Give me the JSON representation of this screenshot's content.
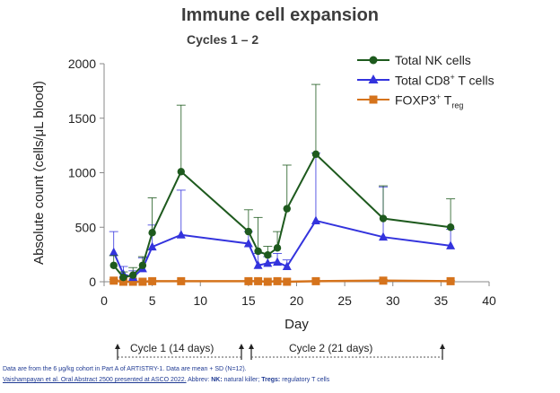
{
  "chart_data": {
    "type": "line",
    "title": "Immune cell expansion",
    "subtitle": "Cycles 1 – 2",
    "xlabel": "Day",
    "ylabel": "Absolute count (cells/μL blood)",
    "xlim": [
      0,
      40
    ],
    "ylim": [
      0,
      2000
    ],
    "xticks": [
      0,
      5,
      10,
      15,
      20,
      25,
      30,
      35,
      40
    ],
    "yticks": [
      0,
      500,
      1000,
      1500,
      2000
    ],
    "grid": false,
    "legend_position": "top-right",
    "series": [
      {
        "name": "Total NK cells",
        "color": "#1e5a1e",
        "marker": "circle",
        "x": [
          1,
          2,
          3,
          4,
          5,
          8,
          15,
          16,
          17,
          18,
          19,
          22,
          29,
          36
        ],
        "y": [
          150,
          40,
          60,
          150,
          450,
          1010,
          460,
          280,
          245,
          310,
          670,
          1170,
          580,
          500
        ],
        "err": [
          90,
          50,
          70,
          80,
          320,
          610,
          200,
          310,
          80,
          150,
          400,
          640,
          300,
          260
        ]
      },
      {
        "name": "Total CD8⁺ T cells",
        "color": "#3333dd",
        "marker": "triangle",
        "x": [
          1,
          2,
          3,
          4,
          5,
          8,
          15,
          16,
          17,
          18,
          19,
          22,
          29,
          36
        ],
        "y": [
          270,
          70,
          40,
          120,
          320,
          430,
          350,
          150,
          170,
          180,
          140,
          560,
          410,
          330
        ],
        "err": [
          190,
          70,
          60,
          100,
          200,
          410,
          110,
          110,
          60,
          80,
          60,
          620,
          460,
          150
        ]
      },
      {
        "name": "FOXP3⁺ T_reg",
        "color": "#d5731c",
        "marker": "square",
        "x": [
          1,
          2,
          3,
          4,
          5,
          8,
          15,
          16,
          17,
          18,
          19,
          22,
          29,
          36
        ],
        "y": [
          10,
          0,
          0,
          0,
          5,
          5,
          5,
          5,
          0,
          5,
          0,
          5,
          10,
          5
        ],
        "err": [
          10,
          5,
          5,
          5,
          5,
          5,
          5,
          5,
          5,
          5,
          5,
          5,
          10,
          5
        ]
      }
    ]
  },
  "legend": {
    "nk_label": "Total NK cells",
    "cd8_prefix": "Total CD8",
    "cd8_sup": "+",
    "cd8_suffix": " T cells",
    "treg_prefix": "FOXP3",
    "treg_sup": "+",
    "treg_T": " T",
    "treg_sub": "reg"
  },
  "cycles": {
    "cycle1_label": "Cycle 1 (14 days)",
    "cycle2_label": "Cycle 2 (21 days)"
  },
  "footnote": {
    "line1": "Data are from the 6 μg/kg cohort in Part A of ARTISTRY-1. Data are mean + SD (N=12).",
    "line2_citation": "Vaishampayan et al. Oral Abstract 2500 presented at ASCO 2022.",
    "line2_abbrev": " Abbrev: ",
    "nk_key": "NK:",
    "nk_value": " natural killer; ",
    "treg_key": "Tregs:",
    "treg_value": " regulatory T cells"
  }
}
